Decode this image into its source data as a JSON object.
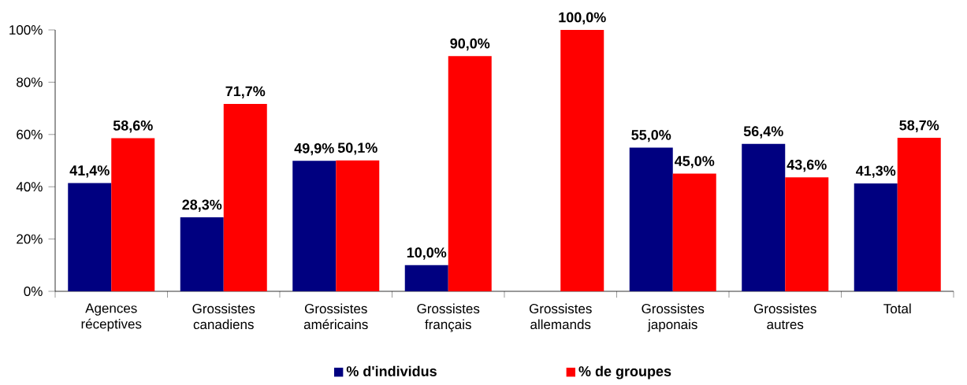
{
  "chart_data": {
    "type": "bar",
    "categories": [
      "Agences réceptives",
      "Grossistes canadiens",
      "Grossistes américains",
      "Grossistes français",
      "Grossistes allemands",
      "Grossistes japonais",
      "Grossistes autres",
      "Total"
    ],
    "series": [
      {
        "name": "% d'individus",
        "color": "#000080",
        "values": [
          41.4,
          28.3,
          49.9,
          10.0,
          null,
          55.0,
          56.4,
          41.3
        ],
        "value_labels": [
          "41,4%",
          "28,3%",
          "49,9%",
          "10,0%",
          null,
          "55,0%",
          "56,4%",
          "41,3%"
        ]
      },
      {
        "name": "% de groupes",
        "color": "#ff0000",
        "values": [
          58.6,
          71.7,
          50.1,
          90.0,
          100.0,
          45.0,
          43.6,
          58.7
        ],
        "value_labels": [
          "58,6%",
          "71,7%",
          "50,1%",
          "90,0%",
          "100,0%",
          "45,0%",
          "43,6%",
          "58,7%"
        ]
      }
    ],
    "ylim": [
      0,
      100
    ],
    "yticks": [
      {
        "value": 0,
        "label": "0%"
      },
      {
        "value": 20,
        "label": "20%"
      },
      {
        "value": 40,
        "label": "40%"
      },
      {
        "value": 60,
        "label": "60%"
      },
      {
        "value": 80,
        "label": "80%"
      },
      {
        "value": 100,
        "label": "100%"
      }
    ],
    "grid": false,
    "legend": "bottom"
  }
}
